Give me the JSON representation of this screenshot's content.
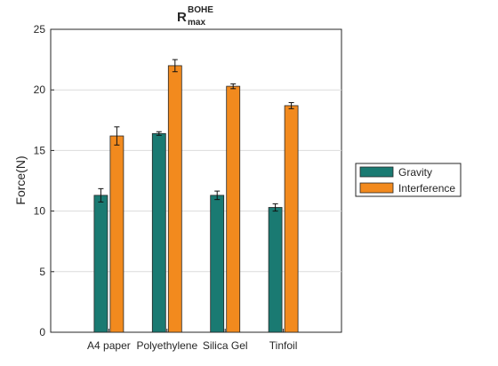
{
  "chart_data": {
    "type": "bar",
    "title": "R",
    "title_superscript": "BOHE",
    "title_subscript": "max",
    "xlabel": "",
    "ylabel": "Force(N)",
    "ylim": [
      0,
      25
    ],
    "yticks": [
      0,
      5,
      10,
      15,
      20,
      25
    ],
    "grid": "y-major",
    "legend_position": "right",
    "categories": [
      "A4 paper",
      "Polyethylene",
      "Silica Gel",
      "Tinfoil"
    ],
    "series": [
      {
        "name": "Gravity",
        "color": "#1a7a72",
        "values": [
          11.3,
          16.4,
          11.3,
          10.3
        ],
        "errors": [
          0.55,
          0.15,
          0.35,
          0.3
        ]
      },
      {
        "name": "Interference",
        "color": "#f28a1e",
        "values": [
          16.2,
          22.0,
          20.3,
          18.7
        ],
        "errors": [
          0.75,
          0.5,
          0.2,
          0.25
        ]
      }
    ]
  }
}
